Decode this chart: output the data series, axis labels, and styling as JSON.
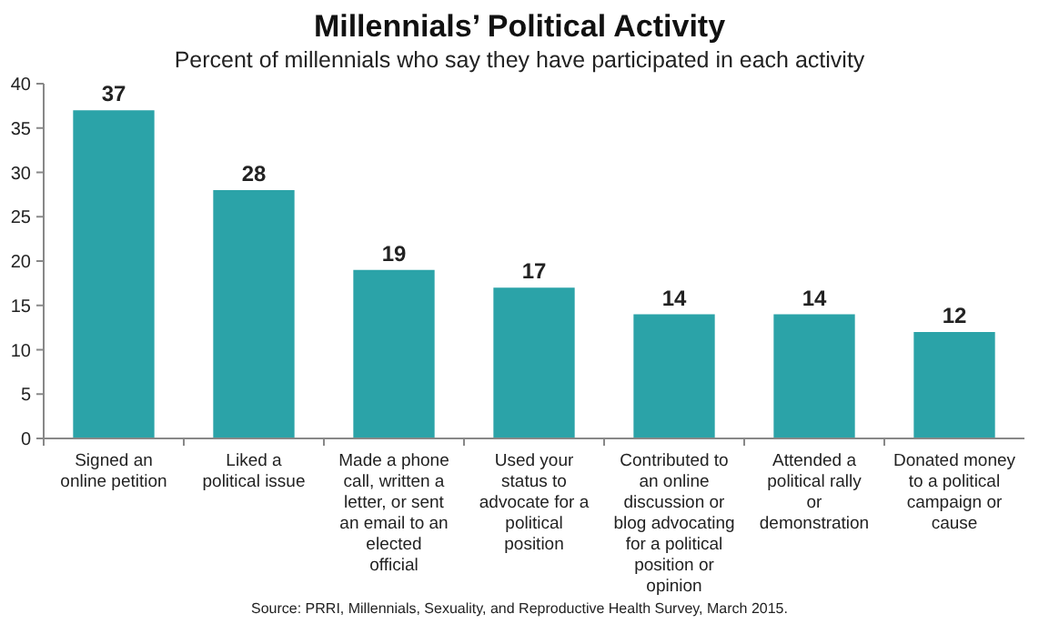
{
  "chart_data": {
    "type": "bar",
    "title": "Millennials’ Political Activity",
    "subtitle": "Percent of millennials who say they have participated in each activity",
    "categories": [
      "Signed an online petition",
      "Liked a political issue",
      "Made a phone call, written a letter, or sent an email to an elected official",
      "Used your status to advocate for a political position",
      "Contributed to an online discussion or blog advocating for a political position or opinion",
      "Attended a political rally or demonstration",
      "Donated money to a political campaign or cause"
    ],
    "values": [
      37,
      28,
      19,
      17,
      14,
      14,
      12
    ],
    "color": "#2ba3a8",
    "data_labels": true,
    "ylim": [
      0,
      40
    ],
    "yticks": [
      0,
      5,
      10,
      15,
      20,
      25,
      30,
      35,
      40
    ],
    "grid": false,
    "annotations": [
      "Source: PRRI, Millennials, Sexuality, and Reproductive Health Survey, March 2015."
    ]
  }
}
